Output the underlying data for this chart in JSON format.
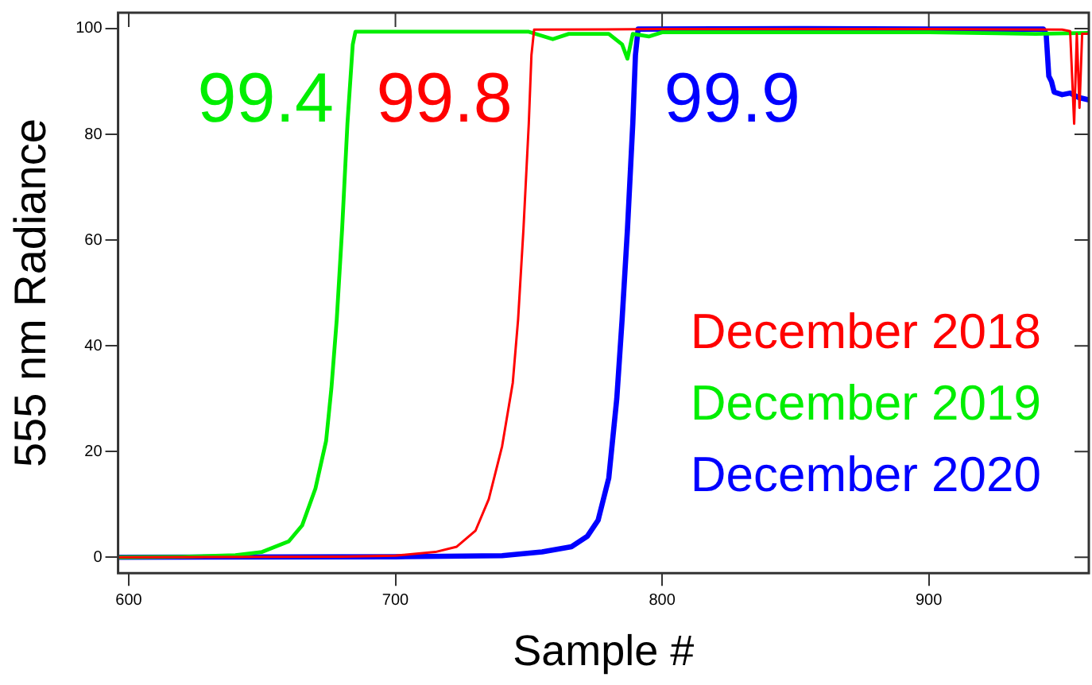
{
  "chart_data": {
    "type": "line",
    "xlabel": "Sample #",
    "ylabel": "555 nm Radiance",
    "xlim": [
      596,
      960
    ],
    "xticks": [
      600,
      700,
      800,
      900
    ],
    "ylim": [
      -3,
      103
    ],
    "yticks": [
      0,
      20,
      40,
      60,
      80,
      100
    ],
    "grid": false,
    "legend": "bottom right",
    "marker": "none",
    "line_style": "solid",
    "series": [
      {
        "name": "December 2018",
        "color": "#ff0000",
        "x": [
          596,
          680,
          700,
          715,
          723,
          730,
          735,
          740,
          744,
          746,
          748,
          750,
          751,
          752,
          800,
          850,
          900,
          950,
          953,
          954.5,
          955.5,
          956.5,
          957.5,
          960
        ],
        "values": [
          0,
          0.1,
          0.3,
          1,
          2,
          5,
          11,
          21,
          33,
          45,
          62,
          82,
          95,
          99.8,
          99.9,
          99.9,
          99.9,
          99.8,
          99.5,
          82,
          99,
          85,
          99,
          99
        ]
      },
      {
        "name": "December 2019",
        "color": "#00ee00",
        "x": [
          596,
          620,
          640,
          650,
          660,
          665,
          670,
          674,
          676,
          678,
          680,
          682,
          684,
          685,
          750,
          759,
          765,
          780,
          785,
          787,
          789,
          795,
          800,
          850,
          900,
          940,
          960
        ],
        "values": [
          0,
          0.1,
          0.4,
          1,
          3,
          6,
          13,
          22,
          32,
          45,
          62,
          82,
          97,
          99.4,
          99.4,
          98,
          99,
          99,
          97,
          94.3,
          99,
          98.5,
          99.3,
          99.3,
          99.3,
          99,
          99.2
        ]
      },
      {
        "name": "December 2020",
        "color": "#0000ff",
        "x": [
          596,
          700,
          740,
          755,
          766,
          772,
          776,
          780,
          783,
          785,
          787,
          789,
          790,
          791,
          850,
          900,
          943,
          944,
          945,
          946,
          947,
          950,
          953,
          956,
          960
        ],
        "values": [
          0,
          0.1,
          0.3,
          1,
          2,
          4,
          7,
          15,
          30,
          45,
          62,
          82,
          95,
          99.9,
          100,
          99.9,
          99.9,
          99,
          91,
          90,
          88,
          87.5,
          87.8,
          87,
          86.5
        ]
      }
    ],
    "annotations": [
      "99.8",
      "99.4",
      "99.9"
    ]
  }
}
